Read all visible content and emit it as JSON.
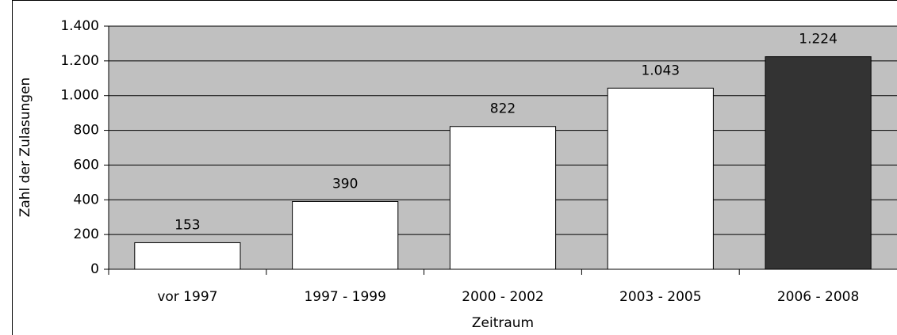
{
  "chart_data": {
    "type": "bar",
    "categories": [
      "vor 1997",
      "1997 - 1999",
      "2000 - 2002",
      "2003 - 2005",
      "2006 - 2008"
    ],
    "values": [
      153,
      390,
      822,
      1043,
      1224
    ],
    "value_labels": [
      "153",
      "390",
      "822",
      "1.043",
      "1.224"
    ],
    "colors": [
      "#ffffff",
      "#ffffff",
      "#ffffff",
      "#ffffff",
      "#333333"
    ],
    "xlabel": "Zeitraum",
    "ylabel": "Zahl der Zulasungen",
    "ylim": [
      0,
      1400
    ],
    "yticks": [
      0,
      200,
      400,
      600,
      800,
      {
        "value": 1000,
        "label": "1.000"
      },
      {
        "value": 1200,
        "label": "1.200"
      },
      {
        "value": 1400,
        "label": "1.400"
      }
    ],
    "grid": true
  }
}
